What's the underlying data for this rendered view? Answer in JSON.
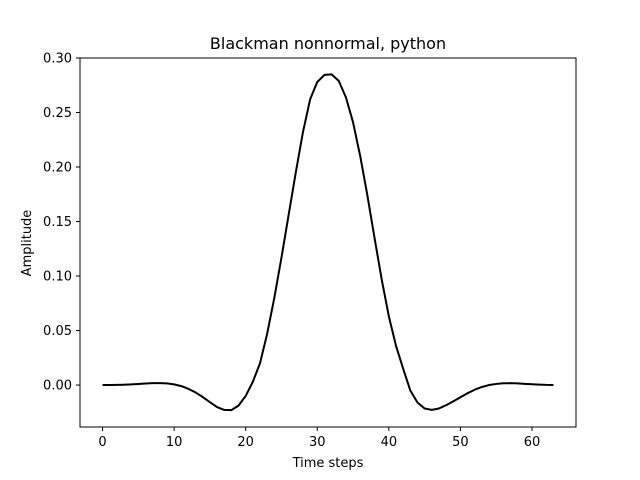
{
  "chart_data": {
    "type": "line",
    "title": "Blackman nonnormal, python",
    "xlabel": "Time steps",
    "ylabel": "Amplitude",
    "xlim": [
      -3.15,
      66.15
    ],
    "ylim": [
      -0.0385,
      0.3
    ],
    "xticks": [
      0,
      10,
      20,
      30,
      40,
      50,
      60
    ],
    "yticks": [
      0.0,
      0.05,
      0.1,
      0.15,
      0.2,
      0.25,
      0.3
    ],
    "ytick_labels": [
      "0.00",
      "0.05",
      "0.10",
      "0.15",
      "0.20",
      "0.25",
      "0.30"
    ],
    "grid": false,
    "line_color": "#000000",
    "series": [
      {
        "x": [
          0,
          1,
          2,
          3,
          4,
          5,
          6,
          7,
          8,
          9,
          10,
          11,
          12,
          13,
          14,
          15,
          16,
          17,
          18,
          19,
          20,
          21,
          22,
          23,
          24,
          25,
          26,
          27,
          28,
          29,
          30,
          31,
          32,
          33,
          34,
          35,
          36,
          37,
          38,
          39,
          40,
          41,
          42,
          43,
          44,
          45,
          46,
          47,
          48,
          49,
          50,
          51,
          52,
          53,
          54,
          55,
          56,
          57,
          58,
          59,
          60,
          61,
          62,
          63
        ],
        "values": [
          0.0,
          0.0,
          0.0001,
          0.0003,
          0.0006,
          0.001,
          0.0014,
          0.0017,
          0.0018,
          0.0015,
          0.0006,
          -0.001,
          -0.0035,
          -0.0068,
          -0.011,
          -0.0157,
          -0.0202,
          -0.0228,
          -0.023,
          -0.0189,
          -0.01,
          0.003,
          0.02,
          0.047,
          0.08,
          0.117,
          0.156,
          0.195,
          0.232,
          0.262,
          0.278,
          0.2845,
          0.285,
          0.279,
          0.264,
          0.241,
          0.21,
          0.174,
          0.135,
          0.097,
          0.063,
          0.036,
          0.015,
          -0.005,
          -0.016,
          -0.0215,
          -0.0228,
          -0.0215,
          -0.0185,
          -0.015,
          -0.0112,
          -0.0075,
          -0.0043,
          -0.0018,
          0.0,
          0.001,
          0.0016,
          0.0017,
          0.0015,
          0.0011,
          0.0007,
          0.0004,
          0.0001,
          0.0
        ]
      }
    ]
  }
}
